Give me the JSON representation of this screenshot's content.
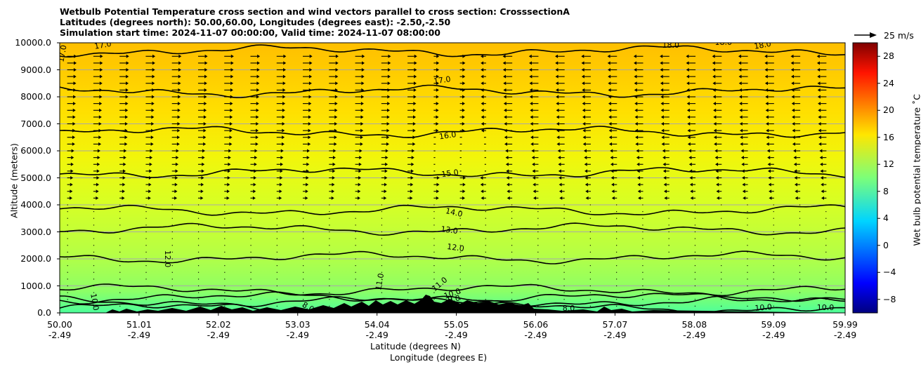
{
  "chart_data": {
    "type": "contour",
    "title_lines": [
      "Wetbulb Potential Temperature cross section and wind vectors parallel to cross section: CrosssectionA",
      "Latitudes (degrees north): 50.00,60.00, Longitudes (degrees east): -2.50,-2.50",
      "Simulation start time: 2024-11-07 00:00:00, Valid time: 2024-11-07 08:00:00"
    ],
    "ylabel": "Altitude (meters)",
    "xlabel_line1": "Latitude (degrees N)",
    "xlabel_line2": "Longitude (degrees E)",
    "ylim": [
      0,
      10000
    ],
    "yticks": [
      "0.0",
      "1000.0",
      "2000.0",
      "3000.0",
      "4000.0",
      "5000.0",
      "6000.0",
      "7000.0",
      "8000.0",
      "9000.0",
      "10000.0"
    ],
    "xticks": [
      {
        "lat": "50.00",
        "lon": "-2.49"
      },
      {
        "lat": "51.01",
        "lon": "-2.49"
      },
      {
        "lat": "52.02",
        "lon": "-2.49"
      },
      {
        "lat": "53.03",
        "lon": "-2.49"
      },
      {
        "lat": "54.04",
        "lon": "-2.49"
      },
      {
        "lat": "55.05",
        "lon": "-2.49"
      },
      {
        "lat": "56.06",
        "lon": "-2.49"
      },
      {
        "lat": "57.07",
        "lon": "-2.49"
      },
      {
        "lat": "58.08",
        "lon": "-2.49"
      },
      {
        "lat": "59.09",
        "lon": "-2.49"
      },
      {
        "lat": "59.99",
        "lon": "-2.49"
      }
    ],
    "colorbar": {
      "label": "Wet bulb potential temperature ˚C",
      "range": [
        -10,
        30
      ],
      "ticks": [
        "−8",
        "−4",
        "0",
        "4",
        "8",
        "12",
        "16",
        "20",
        "24",
        "28"
      ]
    },
    "wind_key": {
      "label": "25 m/s"
    },
    "contours": [
      {
        "level": "8.0",
        "alt": 180
      },
      {
        "level": "9.0",
        "alt": 430
      },
      {
        "level": "10.0",
        "alt": 560
      },
      {
        "level": "11.0",
        "alt": 850
      },
      {
        "level": "12.0",
        "alt": 2050
      },
      {
        "level": "13.0",
        "alt": 3100
      },
      {
        "level": "14.0",
        "alt": 3800
      },
      {
        "level": "15.0",
        "alt": 5200
      },
      {
        "level": "16.0",
        "alt": 6700
      },
      {
        "level": "17.0",
        "alt": 8200
      },
      {
        "level": "18.0",
        "alt": 9700
      }
    ],
    "contour_labels": [
      {
        "text": "17.0",
        "x": 0.004,
        "alt": 9600,
        "rot": -80
      },
      {
        "text": "17.0",
        "x": 0.055,
        "alt": 9900,
        "rot": -10
      },
      {
        "text": "17.0",
        "x": 0.487,
        "alt": 8600,
        "rot": -8
      },
      {
        "text": "16.0",
        "x": 0.494,
        "alt": 6550,
        "rot": -8
      },
      {
        "text": "15.0",
        "x": 0.497,
        "alt": 5150,
        "rot": -8
      },
      {
        "text": "14.0",
        "x": 0.502,
        "alt": 3700,
        "rot": 12
      },
      {
        "text": "13.0",
        "x": 0.496,
        "alt": 3050,
        "rot": 8
      },
      {
        "text": "12.0",
        "x": 0.504,
        "alt": 2400,
        "rot": 8
      },
      {
        "text": "12.0",
        "x": 0.137,
        "alt": 2000,
        "rot": 90
      },
      {
        "text": "11.0",
        "x": 0.408,
        "alt": 1150,
        "rot": -80
      },
      {
        "text": "11.0",
        "x": 0.484,
        "alt": 1050,
        "rot": -40
      },
      {
        "text": "10.0",
        "x": 0.5,
        "alt": 700,
        "rot": -20
      },
      {
        "text": "9.0",
        "x": 0.502,
        "alt": 500,
        "rot": -10
      },
      {
        "text": "10.0",
        "x": 0.044,
        "alt": 400,
        "rot": 80
      },
      {
        "text": "8.0",
        "x": 0.316,
        "alt": 200,
        "rot": 30
      },
      {
        "text": "10.0",
        "x": 0.896,
        "alt": 180,
        "rot": -5
      },
      {
        "text": "10.0",
        "x": 0.975,
        "alt": 180,
        "rot": 0
      },
      {
        "text": "18.0",
        "x": 0.778,
        "alt": 9900,
        "rot": 0
      },
      {
        "text": "18.0",
        "x": 0.845,
        "alt": 10000,
        "rot": 0
      },
      {
        "text": "18.0",
        "x": 0.895,
        "alt": 9900,
        "rot": -10
      },
      {
        "text": "8.0",
        "x": 0.648,
        "alt": 150,
        "rot": 0
      }
    ]
  }
}
